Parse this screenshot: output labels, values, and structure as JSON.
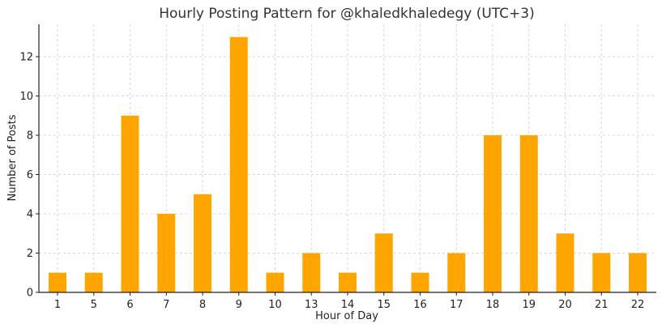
{
  "chart_data": {
    "type": "bar",
    "title": "Hourly Posting Pattern for @khaledkhaledegy (UTC+3)",
    "xlabel": "Hour of Day",
    "ylabel": "Number of Posts",
    "categories": [
      "1",
      "5",
      "6",
      "7",
      "8",
      "9",
      "10",
      "13",
      "14",
      "15",
      "16",
      "17",
      "18",
      "19",
      "20",
      "21",
      "22"
    ],
    "values": [
      1,
      1,
      9,
      4,
      5,
      13,
      1,
      2,
      1,
      3,
      1,
      2,
      8,
      8,
      3,
      2,
      2
    ],
    "ylim": [
      0,
      13.65
    ],
    "yticks": [
      0,
      2,
      4,
      6,
      8,
      10,
      12
    ],
    "grid": true,
    "bar_color": "#FFA500"
  }
}
